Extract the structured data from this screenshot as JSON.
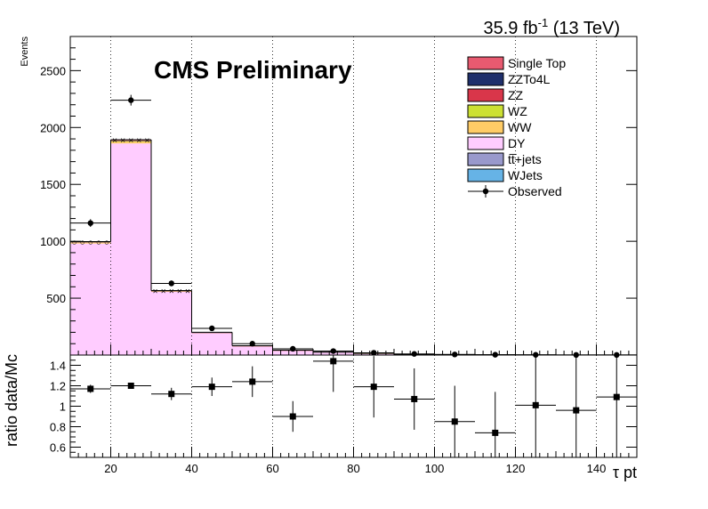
{
  "header": {
    "lumi_value": "35.9 fb",
    "lumi_exp": "-1",
    "lumi_energy": " (13 TeV)",
    "cms_label": "CMS Preliminary"
  },
  "chart_data": [
    {
      "type": "bar",
      "panel": "main",
      "stacked": true,
      "ylabel": "Events",
      "xlabel": "",
      "xlim": [
        10,
        150
      ],
      "ylim": [
        0,
        2800
      ],
      "yticks": [
        0,
        500,
        1000,
        1500,
        2000,
        2500
      ],
      "xticks": [
        20,
        40,
        60,
        80,
        100,
        120,
        140
      ],
      "grid_x": true,
      "grid_y": false,
      "legend_position": "top-right",
      "bin_edges": [
        10,
        20,
        30,
        40,
        50,
        60,
        70,
        80,
        90,
        100,
        110,
        120,
        130,
        140,
        150
      ],
      "series": [
        {
          "name": "DY",
          "color": "#ffccff",
          "values": [
            980,
            1860,
            555,
            195,
            80,
            42,
            25,
            15,
            8,
            5,
            3,
            2,
            1,
            1
          ]
        },
        {
          "name": "WW",
          "color": "#ffcc66",
          "values": [
            8,
            15,
            5,
            2,
            1,
            0.5,
            0.3,
            0.2,
            0.1,
            0.1,
            0,
            0,
            0,
            0
          ]
        },
        {
          "name": "WZ",
          "color": "#cce033",
          "values": [
            3,
            6,
            2,
            1,
            0.5,
            0.2,
            0.1,
            0.1,
            0,
            0,
            0,
            0,
            0,
            0
          ]
        },
        {
          "name": "ZZ",
          "color": "#d9364a",
          "values": [
            2,
            4,
            1.5,
            0.6,
            0.3,
            0.2,
            0.1,
            0,
            0,
            0,
            0,
            0,
            0,
            0
          ]
        },
        {
          "name": "ZZTo4L",
          "color": "#1f2f6b",
          "values": [
            1,
            2,
            1,
            0.4,
            0.2,
            0.1,
            0,
            0,
            0,
            0,
            0,
            0,
            0,
            0
          ]
        },
        {
          "name": "Single Top",
          "color": "#e85a70",
          "values": [
            2,
            4,
            1.5,
            0.6,
            0.3,
            0.2,
            0.1,
            0,
            0,
            0,
            0,
            0,
            0,
            0
          ]
        },
        {
          "name": "tt̅+jets",
          "color": "#9999cc",
          "values": [
            1,
            2,
            1,
            0.5,
            0.3,
            0.2,
            0.1,
            0.1,
            0,
            0,
            0,
            0,
            0,
            0
          ]
        },
        {
          "name": "WJets",
          "color": "#66b3e6",
          "values": [
            0,
            0,
            0,
            0,
            0,
            0,
            0,
            0,
            0,
            0,
            0,
            0,
            0,
            0
          ]
        }
      ],
      "observed": {
        "name": "Observed",
        "x": [
          15,
          25,
          35,
          45,
          55,
          65,
          75,
          85,
          95,
          105,
          115,
          125,
          135,
          145
        ],
        "y": [
          1160,
          2240,
          630,
          235,
          100,
          55,
          35,
          20,
          10,
          5,
          3,
          2,
          1,
          1
        ],
        "yerr": [
          34,
          47,
          25,
          15,
          10,
          7,
          6,
          4.5,
          3,
          2.2,
          1.7,
          1.4,
          1,
          1
        ]
      },
      "legend": [
        "Single Top",
        "ZZTo4L",
        "ZZ",
        "WZ",
        "WW",
        "DY",
        "tt̅+jets",
        "WJets",
        "Observed"
      ]
    },
    {
      "type": "scatter",
      "panel": "ratio",
      "ylabel": "ratio data/Mc",
      "xlabel": "τ pt",
      "xlim": [
        10,
        150
      ],
      "ylim": [
        0.5,
        1.5
      ],
      "yticks": [
        0.6,
        0.8,
        1,
        1.2,
        1.4
      ],
      "ytick_labels": [
        "0.6",
        "0.8",
        "1",
        "1.2",
        "1.4"
      ],
      "xticks": [
        20,
        40,
        60,
        80,
        100,
        120,
        140
      ],
      "grid_x": true,
      "x": [
        15,
        25,
        35,
        45,
        55,
        65,
        75,
        85,
        95,
        105,
        115,
        125,
        135,
        145
      ],
      "y": [
        1.17,
        1.2,
        1.12,
        1.19,
        1.24,
        0.9,
        1.44,
        1.19,
        1.07,
        0.85,
        0.74,
        1.01,
        0.96,
        1.09
      ],
      "yerr": [
        0.04,
        0.03,
        0.06,
        0.09,
        0.15,
        0.15,
        0.3,
        0.3,
        0.3,
        0.35,
        0.4,
        0.6,
        0.6,
        0.6
      ]
    }
  ]
}
